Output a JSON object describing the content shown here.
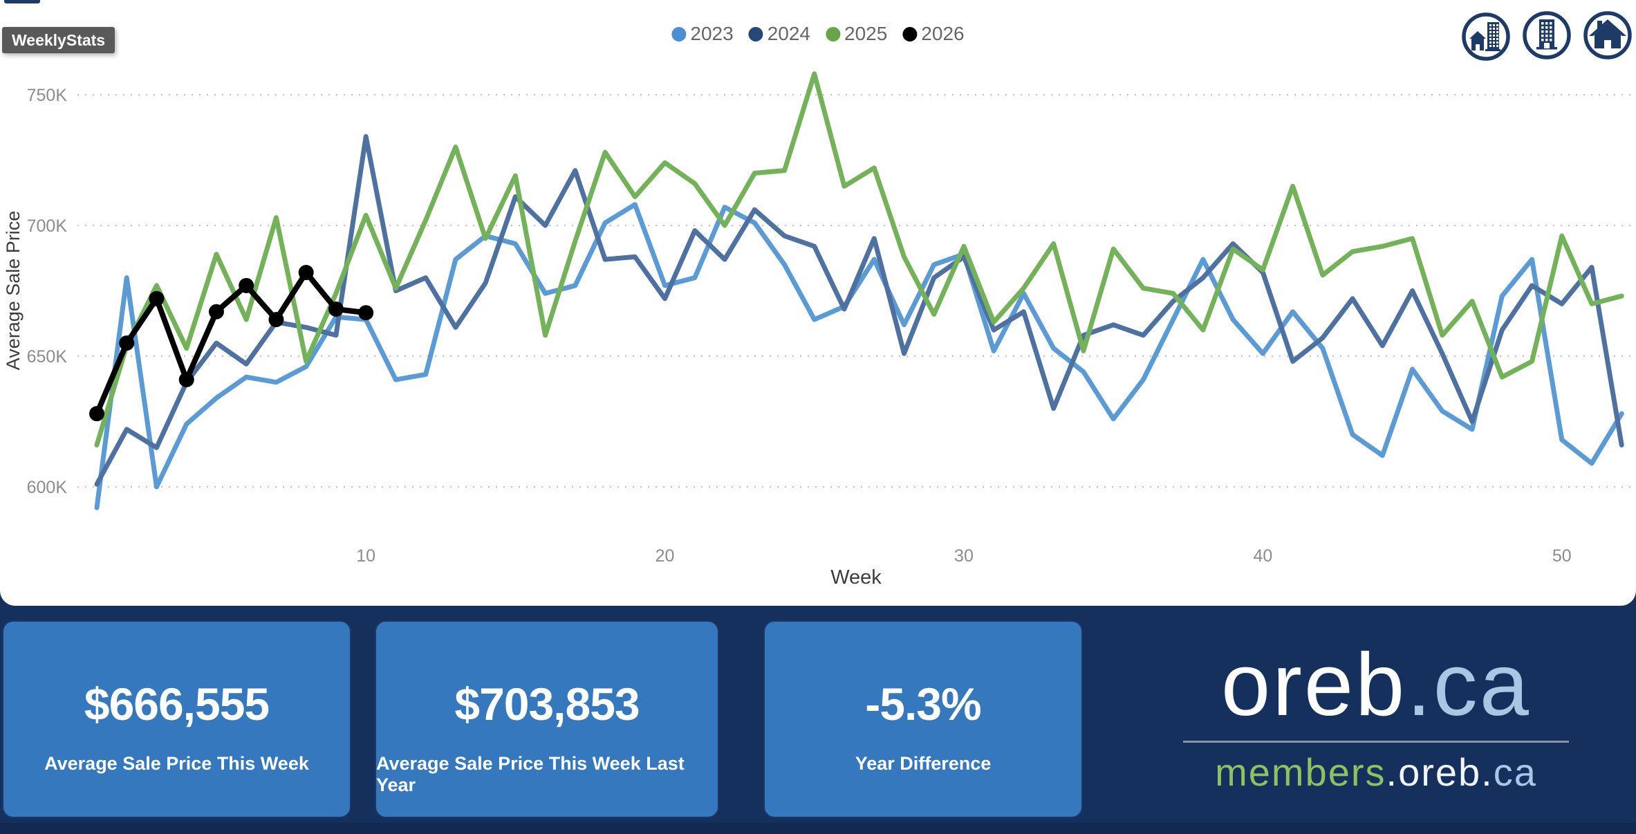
{
  "window": {
    "tooltip_label": "WeeklyStats"
  },
  "legend": {
    "position": "top-center",
    "items": [
      {
        "label": "2023",
        "color": "#4A8FD3"
      },
      {
        "label": "2024",
        "color": "#26477A"
      },
      {
        "label": "2025",
        "color": "#67A646"
      },
      {
        "label": "2026",
        "color": "#000000"
      }
    ]
  },
  "nav_icons": [
    {
      "name": "house-and-building-icon"
    },
    {
      "name": "building-icon"
    },
    {
      "name": "house-icon"
    }
  ],
  "chart_data": {
    "type": "line",
    "title": "",
    "xlabel": "Week",
    "ylabel": "Average Sale Price",
    "x_ticks": [
      10,
      20,
      30,
      40,
      50
    ],
    "y_ticks": [
      {
        "value": 750,
        "label": "750K"
      },
      {
        "value": 700,
        "label": "700K"
      },
      {
        "value": 650,
        "label": "650K"
      },
      {
        "value": 600,
        "label": "600K"
      }
    ],
    "x_range": [
      1,
      52
    ],
    "ylim": [
      588,
      762
    ],
    "grid": "horizontal-dotted",
    "legend_position": "top-center",
    "units": "thousands",
    "series": [
      {
        "name": "2023",
        "color": "#5B9BD5",
        "line_width": 7,
        "markers": false,
        "start_week": 1,
        "values": [
          592,
          680,
          600,
          624,
          634,
          642,
          640,
          646,
          665,
          664,
          641,
          643,
          687,
          696,
          693,
          674,
          677,
          701,
          708,
          677,
          680,
          707,
          701,
          685,
          664,
          669,
          687,
          662,
          685,
          689,
          652,
          674,
          653,
          644,
          626,
          641,
          664,
          687,
          664,
          651,
          667,
          653,
          620,
          612,
          645,
          629,
          622,
          673,
          687,
          618,
          609,
          628
        ]
      },
      {
        "name": "2024",
        "color": "#4E71A2",
        "line_width": 7,
        "markers": false,
        "start_week": 1,
        "values": [
          601,
          622,
          615,
          640,
          655,
          647,
          663,
          661,
          658,
          734,
          675,
          680,
          661,
          678,
          711,
          700,
          721,
          687,
          688,
          672,
          698,
          687,
          706,
          696,
          692,
          668,
          695,
          651,
          680,
          688,
          660,
          667,
          630,
          658,
          662,
          658,
          671,
          680,
          693,
          682,
          648,
          657,
          672,
          654,
          675,
          651,
          625,
          660,
          677,
          670,
          684,
          616
        ]
      },
      {
        "name": "2025",
        "color": "#74B259",
        "line_width": 7,
        "markers": false,
        "start_week": 1,
        "values": [
          616,
          654,
          677,
          653,
          689,
          664,
          703,
          648,
          674,
          703.9,
          676,
          702,
          730,
          695,
          719,
          658,
          694,
          728,
          711,
          724,
          716,
          700,
          720,
          721,
          758,
          715,
          722,
          688,
          666,
          692,
          663,
          676,
          693,
          652,
          691,
          676,
          674,
          660,
          691,
          683,
          715,
          681,
          690,
          692,
          695,
          658,
          671,
          642,
          648,
          696,
          670,
          673
        ]
      },
      {
        "name": "2026",
        "color": "#000000",
        "line_width": 8,
        "markers": true,
        "marker_radius": 11,
        "start_week": 1,
        "values": [
          628,
          655,
          672,
          641,
          667,
          677,
          664,
          682,
          668,
          666.6
        ]
      }
    ]
  },
  "kpi_cards": [
    {
      "value": "$666,555",
      "label": "Average Sale Price This Week"
    },
    {
      "value": "$703,853",
      "label": "Average Sale Price This Week Last Year"
    },
    {
      "value": "-5.3%",
      "label": "Year Difference"
    }
  ],
  "logo": {
    "main_white": "oreb",
    "main_accent": ".ca",
    "sub_green": "members",
    "sub_white": ".oreb.",
    "sub_accent": "ca"
  },
  "colors": {
    "band_navy": "#16305E",
    "band_strip": "#122A52",
    "card_blue": "#3578BE",
    "icon_navy": "#1E3A66",
    "grid_gray": "#BEBEBE",
    "tick_gray": "#8C8C8C",
    "axis_title": "#3C3C3C",
    "tooltip_gray": "#595959"
  }
}
